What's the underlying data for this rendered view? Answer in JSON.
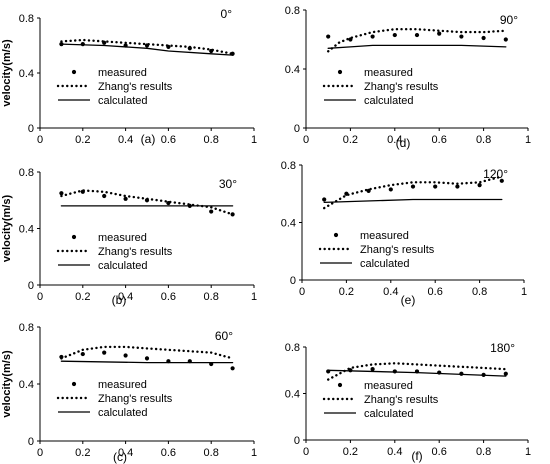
{
  "figure": {
    "y_axis_label": "velocity(m/s)",
    "legend": {
      "measured": "measured",
      "zhang": "Zhang's results",
      "calculated": "calculated"
    }
  },
  "chart_data": [
    {
      "id": "a",
      "panel_label": "(a)",
      "angle_label": "0°",
      "type": "line",
      "xlim": [
        0,
        1
      ],
      "ylim": [
        0,
        0.8
      ],
      "x_ticks": [
        "0",
        "0.2",
        "0.4",
        "0.6",
        "0.8",
        "1"
      ],
      "y_ticks": [
        "0",
        "0.4",
        "0.8"
      ],
      "ylabel_visible": true,
      "series": [
        {
          "name": "measured",
          "style": "points",
          "x": [
            0.1,
            0.2,
            0.3,
            0.4,
            0.5,
            0.6,
            0.7,
            0.8,
            0.9
          ],
          "y": [
            0.61,
            0.61,
            0.62,
            0.6,
            0.6,
            0.59,
            0.58,
            0.56,
            0.54
          ]
        },
        {
          "name": "Zhang's results",
          "style": "dotted",
          "x": [
            0.1,
            0.2,
            0.3,
            0.4,
            0.5,
            0.6,
            0.7,
            0.8,
            0.9
          ],
          "y": [
            0.63,
            0.64,
            0.63,
            0.62,
            0.61,
            0.6,
            0.59,
            0.57,
            0.54
          ]
        },
        {
          "name": "calculated",
          "style": "solid",
          "x": [
            0.1,
            0.3,
            0.5,
            0.6,
            0.8,
            0.9
          ],
          "y": [
            0.61,
            0.6,
            0.58,
            0.56,
            0.54,
            0.53
          ]
        }
      ]
    },
    {
      "id": "d",
      "panel_label": "(d)",
      "angle_label": "90°",
      "type": "line",
      "xlim": [
        0,
        1
      ],
      "ylim": [
        0,
        0.8
      ],
      "x_ticks": [
        "0",
        "0.2",
        "0.4",
        "0.6",
        "0.8",
        "1"
      ],
      "y_ticks": [
        "0",
        "0.4",
        "0.8"
      ],
      "ylabel_visible": false,
      "series": [
        {
          "name": "measured",
          "style": "points",
          "x": [
            0.1,
            0.2,
            0.3,
            0.4,
            0.5,
            0.6,
            0.7,
            0.8,
            0.9
          ],
          "y": [
            0.62,
            0.6,
            0.62,
            0.63,
            0.63,
            0.64,
            0.62,
            0.61,
            0.6
          ]
        },
        {
          "name": "Zhang's results",
          "style": "dotted",
          "x": [
            0.1,
            0.15,
            0.2,
            0.3,
            0.4,
            0.5,
            0.6,
            0.7,
            0.8,
            0.9
          ],
          "y": [
            0.52,
            0.58,
            0.61,
            0.65,
            0.67,
            0.67,
            0.66,
            0.65,
            0.65,
            0.66
          ]
        },
        {
          "name": "calculated",
          "style": "solid",
          "x": [
            0.1,
            0.2,
            0.3,
            0.5,
            0.7,
            0.9
          ],
          "y": [
            0.54,
            0.55,
            0.56,
            0.56,
            0.56,
            0.55
          ]
        }
      ]
    },
    {
      "id": "b",
      "panel_label": "(b)",
      "angle_label": "30°",
      "type": "line",
      "xlim": [
        0,
        1
      ],
      "ylim": [
        0,
        0.8
      ],
      "x_ticks": [
        "0",
        "0.2",
        "0.4",
        "0.6",
        "0.8",
        "1"
      ],
      "y_ticks": [
        "0",
        "0.4",
        "0.8"
      ],
      "ylabel_visible": true,
      "series": [
        {
          "name": "measured",
          "style": "points",
          "x": [
            0.1,
            0.2,
            0.3,
            0.4,
            0.5,
            0.6,
            0.7,
            0.8,
            0.9
          ],
          "y": [
            0.65,
            0.66,
            0.63,
            0.61,
            0.6,
            0.58,
            0.56,
            0.52,
            0.5
          ]
        },
        {
          "name": "Zhang's results",
          "style": "dotted",
          "x": [
            0.1,
            0.2,
            0.3,
            0.4,
            0.5,
            0.6,
            0.7,
            0.8,
            0.9
          ],
          "y": [
            0.63,
            0.67,
            0.66,
            0.63,
            0.61,
            0.59,
            0.57,
            0.55,
            0.5
          ]
        },
        {
          "name": "calculated",
          "style": "solid",
          "x": [
            0.1,
            0.5,
            0.9
          ],
          "y": [
            0.56,
            0.56,
            0.56
          ]
        }
      ]
    },
    {
      "id": "e",
      "panel_label": "(e)",
      "angle_label": "120°",
      "type": "line",
      "xlim": [
        0,
        1
      ],
      "ylim": [
        0,
        0.8
      ],
      "x_ticks": [
        "0",
        "0.2",
        "0.4",
        "0.6",
        "0.8",
        "1"
      ],
      "y_ticks": [
        "0",
        "0.4",
        "0.8"
      ],
      "ylabel_visible": false,
      "series": [
        {
          "name": "measured",
          "style": "points",
          "x": [
            0.1,
            0.2,
            0.3,
            0.4,
            0.5,
            0.6,
            0.7,
            0.8,
            0.9
          ],
          "y": [
            0.56,
            0.6,
            0.62,
            0.63,
            0.65,
            0.65,
            0.65,
            0.66,
            0.69
          ]
        },
        {
          "name": "Zhang's results",
          "style": "dotted",
          "x": [
            0.1,
            0.2,
            0.3,
            0.4,
            0.5,
            0.6,
            0.7,
            0.8,
            0.9
          ],
          "y": [
            0.5,
            0.59,
            0.63,
            0.66,
            0.68,
            0.68,
            0.67,
            0.68,
            0.72
          ]
        },
        {
          "name": "calculated",
          "style": "solid",
          "x": [
            0.1,
            0.5,
            0.9
          ],
          "y": [
            0.54,
            0.56,
            0.56
          ]
        }
      ]
    },
    {
      "id": "c",
      "panel_label": "(c)",
      "angle_label": "60°",
      "type": "line",
      "xlim": [
        0,
        1
      ],
      "ylim": [
        0,
        0.8
      ],
      "x_ticks": [
        "0",
        "0.2",
        "0.4",
        "0.6",
        "0.8",
        "1"
      ],
      "y_ticks": [
        "0",
        "0.4",
        "0.8"
      ],
      "ylabel_visible": true,
      "series": [
        {
          "name": "measured",
          "style": "points",
          "x": [
            0.1,
            0.2,
            0.3,
            0.4,
            0.5,
            0.6,
            0.7,
            0.8,
            0.9
          ],
          "y": [
            0.59,
            0.61,
            0.62,
            0.6,
            0.58,
            0.56,
            0.56,
            0.54,
            0.51
          ]
        },
        {
          "name": "Zhang's results",
          "style": "dotted",
          "x": [
            0.1,
            0.2,
            0.3,
            0.4,
            0.5,
            0.6,
            0.7,
            0.8,
            0.9
          ],
          "y": [
            0.58,
            0.64,
            0.66,
            0.66,
            0.65,
            0.64,
            0.63,
            0.62,
            0.58
          ]
        },
        {
          "name": "calculated",
          "style": "solid",
          "x": [
            0.1,
            0.5,
            0.9
          ],
          "y": [
            0.56,
            0.55,
            0.55
          ]
        }
      ]
    },
    {
      "id": "f",
      "panel_label": "(f)",
      "angle_label": "180°",
      "type": "line",
      "xlim": [
        0,
        1
      ],
      "ylim": [
        0,
        0.8
      ],
      "x_ticks": [
        "0",
        "0.2",
        "0.4",
        "0.6",
        "0.8",
        "1"
      ],
      "y_ticks": [
        "0",
        "0.4",
        "0.8"
      ],
      "ylabel_visible": false,
      "series": [
        {
          "name": "measured",
          "style": "points",
          "x": [
            0.1,
            0.2,
            0.3,
            0.4,
            0.5,
            0.6,
            0.7,
            0.8,
            0.9
          ],
          "y": [
            0.59,
            0.6,
            0.61,
            0.59,
            0.59,
            0.58,
            0.57,
            0.56,
            0.57
          ]
        },
        {
          "name": "Zhang's results",
          "style": "dotted",
          "x": [
            0.1,
            0.2,
            0.3,
            0.4,
            0.5,
            0.6,
            0.7,
            0.8,
            0.9
          ],
          "y": [
            0.52,
            0.62,
            0.65,
            0.66,
            0.65,
            0.64,
            0.63,
            0.62,
            0.61
          ]
        },
        {
          "name": "calculated",
          "style": "solid",
          "x": [
            0.1,
            0.5,
            0.9
          ],
          "y": [
            0.6,
            0.58,
            0.55
          ]
        }
      ]
    }
  ]
}
